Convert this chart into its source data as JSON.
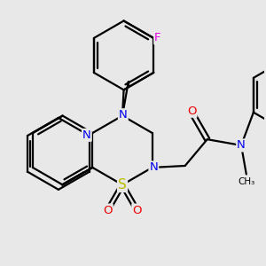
{
  "bg_color": "#e8e8e8",
  "bond_color": "#000000",
  "bond_width": 1.6,
  "atom_colors": {
    "N": "#0000ee",
    "S": "#bbbb00",
    "O": "#ee0000",
    "F": "#ee00ee",
    "C": "#000000"
  },
  "font_size_atom": 9.5,
  "font_size_small": 8.0
}
